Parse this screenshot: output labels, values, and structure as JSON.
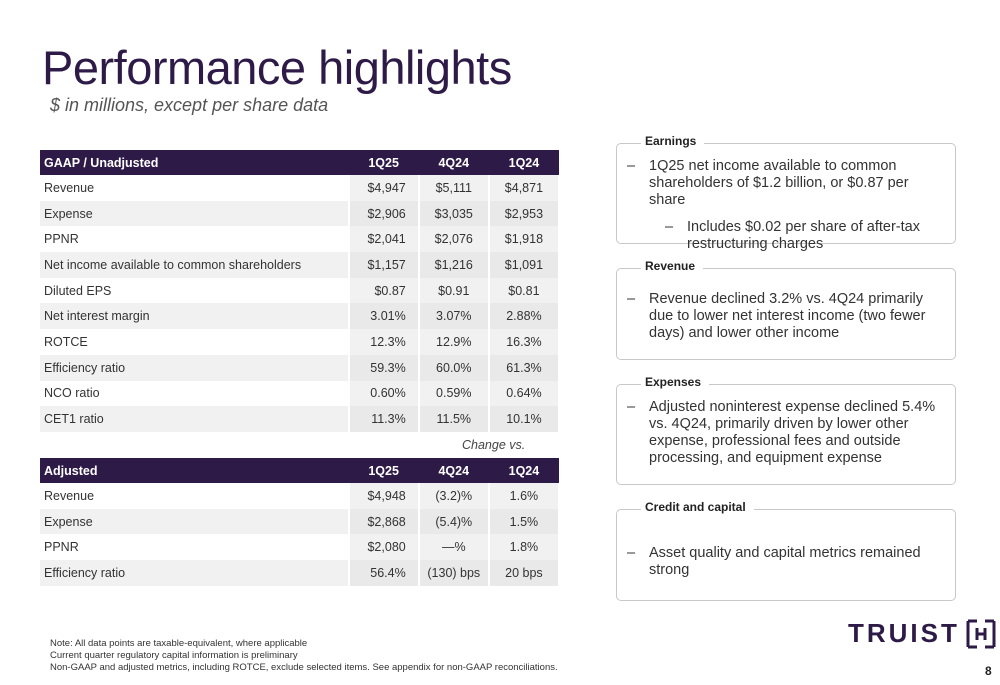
{
  "header": {
    "title": "Performance highlights",
    "subtitle": "$ in millions, except per share data"
  },
  "gaap_table": {
    "columns": [
      "GAAP / Unadjusted",
      "1Q25",
      "4Q24",
      "1Q24"
    ],
    "rows": [
      [
        "Revenue",
        "$4,947",
        "$5,111",
        "$4,871"
      ],
      [
        "Expense",
        "$2,906",
        "$3,035",
        "$2,953"
      ],
      [
        "PPNR",
        "$2,041",
        "$2,076",
        "$1,918"
      ],
      [
        "Net income available to common shareholders",
        "$1,157",
        "$1,216",
        "$1,091"
      ],
      [
        "Diluted EPS",
        "$0.87",
        "$0.91",
        "$0.81"
      ],
      [
        "Net interest margin",
        "3.01%",
        "3.07%",
        "2.88%"
      ],
      [
        "ROTCE",
        "12.3%",
        "12.9%",
        "16.3%"
      ],
      [
        "Efficiency ratio",
        "59.3%",
        "60.0%",
        "61.3%"
      ],
      [
        "NCO ratio",
        "0.60%",
        "0.59%",
        "0.64%"
      ],
      [
        "CET1 ratio",
        "11.3%",
        "11.5%",
        "10.1%"
      ]
    ]
  },
  "change_vs_label": "Change vs.",
  "adjusted_table": {
    "columns": [
      "Adjusted",
      "1Q25",
      "4Q24",
      "1Q24"
    ],
    "rows": [
      [
        "Revenue",
        "$4,948",
        "(3.2)%",
        "1.6%"
      ],
      [
        "Expense",
        "$2,868",
        "(5.4)%",
        "1.5%"
      ],
      [
        "PPNR",
        "$2,080",
        "—%",
        "1.8%"
      ],
      [
        "Efficiency ratio",
        "56.4%",
        "(130) bps",
        "20 bps"
      ]
    ]
  },
  "cards": {
    "earnings": {
      "heading": "Earnings",
      "bullet": "1Q25 net income available to common shareholders of $1.2 billion, or $0.87 per share",
      "sub_bullet": "Includes $0.02 per share of after-tax restructuring charges"
    },
    "revenue": {
      "heading": "Revenue",
      "bullet": "Revenue declined 3.2% vs. 4Q24 primarily due to lower net interest income (two fewer days) and lower other income"
    },
    "expenses": {
      "heading": "Expenses",
      "bullet": "Adjusted noninterest expense declined 5.4% vs. 4Q24, primarily driven by lower other expense, professional fees and outside processing, and equipment expense"
    },
    "credit": {
      "heading": "Credit and capital",
      "bullet": "Asset quality and capital metrics remained strong"
    }
  },
  "bullet_dash": "–",
  "notes": [
    "Note: All data points are taxable-equivalent, where applicable",
    "Current quarter regulatory capital information is preliminary",
    "Non-GAAP and adjusted metrics, including ROTCE, exclude selected items.  See appendix for non-GAAP reconciliations."
  ],
  "logo": {
    "text": "TRUIST",
    "icon": "truist-mark-icon",
    "color": "#2e1a47"
  },
  "page_number": "8",
  "colors": {
    "header_bg": "#2e1a47",
    "card_border": "#c8c8c8"
  }
}
